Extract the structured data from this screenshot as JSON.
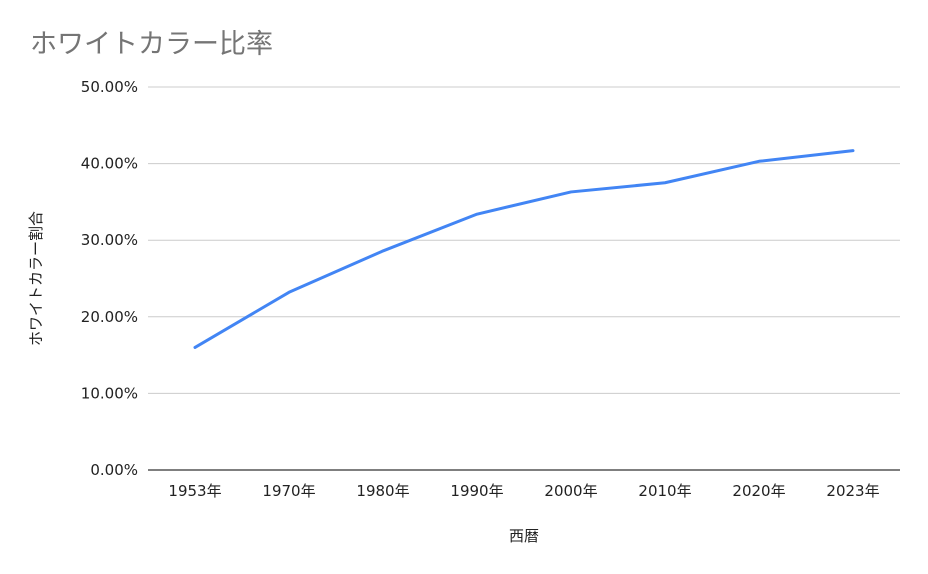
{
  "chart_data": {
    "type": "line",
    "title": "ホワイトカラー比率",
    "xlabel": "西暦",
    "ylabel": "ホワイトカラー割合",
    "categories": [
      "1953年",
      "1970年",
      "1980年",
      "1990年",
      "2000年",
      "2010年",
      "2020年",
      "2023年"
    ],
    "y_tick_labels": [
      "0.00%",
      "10.00%",
      "20.00%",
      "30.00%",
      "40.00%",
      "50.00%"
    ],
    "ylim": [
      0,
      50
    ],
    "grid": true,
    "series": [
      {
        "values": [
          16.0,
          23.2,
          28.6,
          33.4,
          36.3,
          37.5,
          40.3,
          41.7
        ]
      }
    ],
    "colors": {
      "line": "#4285f4",
      "grid": "#cccccc",
      "axis": "#333333",
      "title": "#757575"
    }
  }
}
